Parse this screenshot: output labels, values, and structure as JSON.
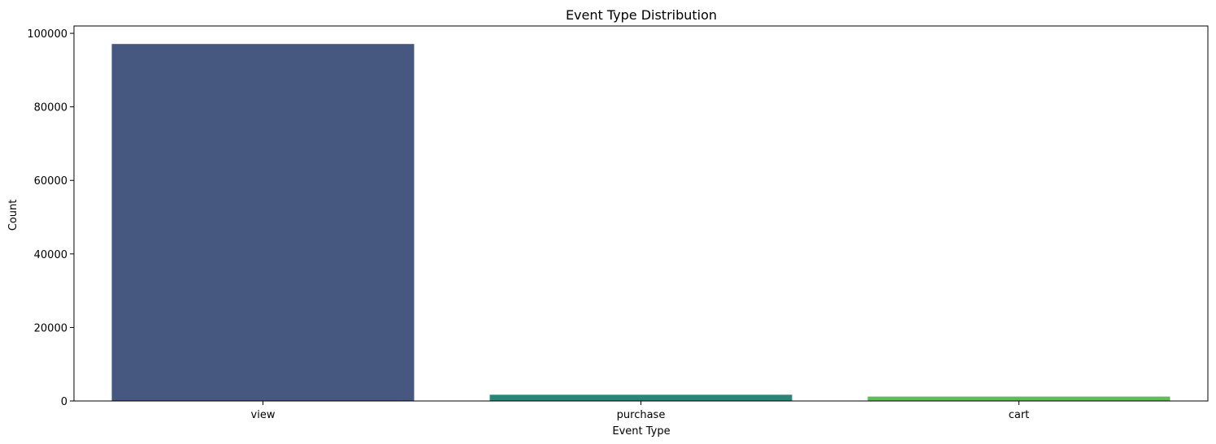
{
  "chart_data": {
    "type": "bar",
    "title": "Event Type Distribution",
    "xlabel": "Event Type",
    "ylabel": "Count",
    "categories": [
      "view",
      "purchase",
      "cart"
    ],
    "values": [
      97100,
      1700,
      1200
    ],
    "colors": [
      "#46587f",
      "#2a8577",
      "#63ba5a"
    ],
    "ylim": [
      0,
      102000
    ],
    "yticks": [
      0,
      20000,
      40000,
      60000,
      80000,
      100000
    ],
    "ytick_labels": [
      "0",
      "20000",
      "40000",
      "60000",
      "80000",
      "100000"
    ],
    "grid": false,
    "legend": "none"
  }
}
